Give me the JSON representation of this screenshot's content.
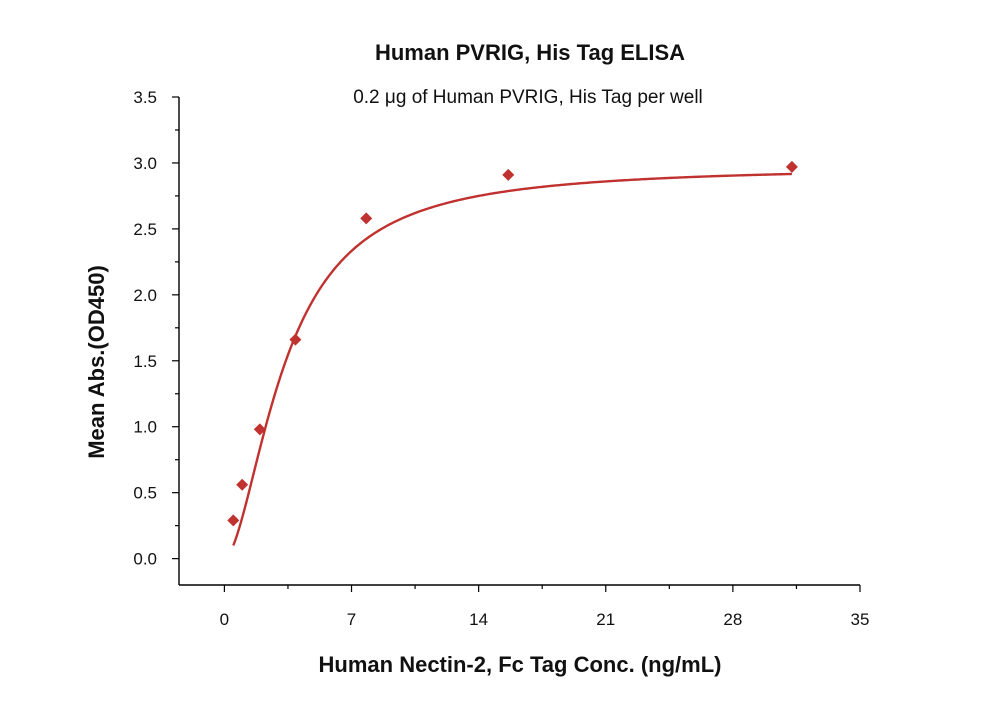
{
  "chart_data": {
    "type": "scatter",
    "title": "Human PVRIG, His Tag ELISA",
    "subtitle": "0.2 μg of Human PVRIG, His Tag per well",
    "xlabel": "Human Nectin-2, Fc Tag Conc. (ng/mL)",
    "ylabel": "Mean Abs.(OD450)",
    "xlim": [
      -2.5,
      35
    ],
    "ylim": [
      -0.2,
      3.5
    ],
    "xticks": [
      0,
      7,
      14,
      21,
      28,
      35
    ],
    "xtick_labels": [
      "0",
      "7",
      "14",
      "21",
      "28",
      "35"
    ],
    "xminor": [
      3.5,
      10.5,
      17.5,
      24.5,
      31.5
    ],
    "yticks": [
      0.0,
      0.5,
      1.0,
      1.5,
      2.0,
      2.5,
      3.0,
      3.5
    ],
    "ytick_labels": [
      "0.0",
      "0.5",
      "1.0",
      "1.5",
      "2.0",
      "2.5",
      "3.0",
      "3.5"
    ],
    "yminor": [
      0.25,
      0.75,
      1.25,
      1.75,
      2.25,
      2.75,
      3.25
    ],
    "grid": false,
    "series": [
      {
        "points": [
          {
            "x": 0.49,
            "y": 0.29
          },
          {
            "x": 0.98,
            "y": 0.56
          },
          {
            "x": 1.95,
            "y": 0.98
          },
          {
            "x": 3.91,
            "y": 1.66
          },
          {
            "x": 7.81,
            "y": 2.58
          },
          {
            "x": 15.63,
            "y": 2.91
          },
          {
            "x": 31.25,
            "y": 2.97
          }
        ],
        "marker": "diamond",
        "color": "#c0322f",
        "fit_curve": "sigmoidal"
      }
    ]
  }
}
